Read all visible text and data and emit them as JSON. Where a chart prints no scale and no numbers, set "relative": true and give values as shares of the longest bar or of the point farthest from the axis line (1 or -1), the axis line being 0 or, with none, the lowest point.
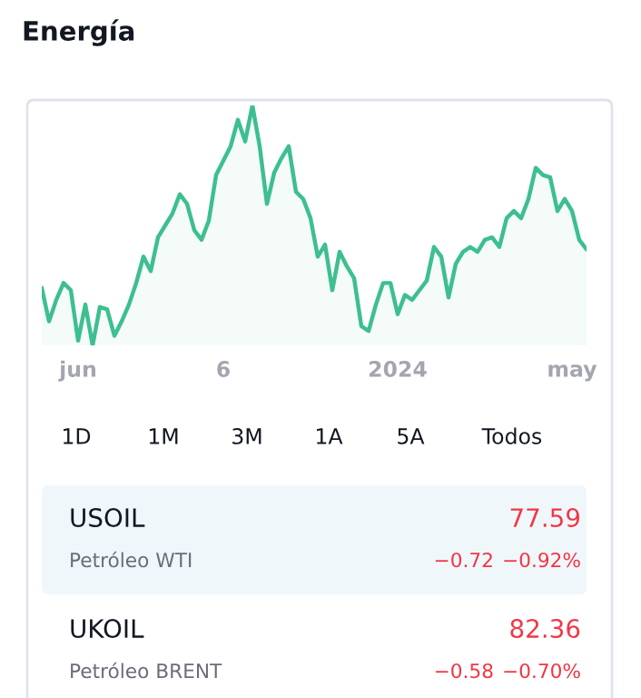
{
  "chart_data": {
    "type": "area",
    "title": "Energía",
    "relative": true,
    "categories": [
      null,
      null,
      null,
      null,
      null,
      "jun",
      null,
      null,
      null,
      null,
      null,
      null,
      null,
      null,
      null,
      null,
      null,
      null,
      null,
      null,
      null,
      null,
      null,
      null,
      null,
      "6",
      null,
      null,
      null,
      null,
      null,
      null,
      null,
      null,
      null,
      null,
      null,
      null,
      null,
      null,
      null,
      null,
      null,
      null,
      null,
      null,
      null,
      null,
      null,
      "2024",
      null,
      null,
      null,
      null,
      null,
      null,
      null,
      null,
      null,
      null,
      null,
      null,
      null,
      null,
      null,
      null,
      null,
      null,
      null,
      null,
      null,
      null,
      null,
      "may",
      null,
      null
    ],
    "series": [
      {
        "color": "#3dbf8f",
        "values": [
          0.24,
          0.1,
          0.19,
          0.26,
          0.23,
          0.02,
          0.17,
          0.0,
          0.16,
          0.15,
          0.04,
          0.1,
          0.17,
          0.26,
          0.37,
          0.31,
          0.45,
          0.5,
          0.55,
          0.63,
          0.59,
          0.48,
          0.44,
          0.52,
          0.71,
          0.77,
          0.83,
          0.94,
          0.85,
          1.0,
          0.83,
          0.59,
          0.72,
          0.78,
          0.83,
          0.64,
          0.61,
          0.53,
          0.37,
          0.42,
          0.23,
          0.39,
          0.33,
          0.28,
          0.08,
          0.06,
          0.17,
          0.26,
          0.26,
          0.13,
          0.21,
          0.19,
          0.23,
          0.27,
          0.41,
          0.37,
          0.2,
          0.34,
          0.39,
          0.41,
          0.39,
          0.44,
          0.45,
          0.41,
          0.53,
          0.56,
          0.53,
          0.61,
          0.74,
          0.71,
          0.7,
          0.56,
          0.61,
          0.56,
          0.44,
          0.4
        ]
      }
    ],
    "annotations": [
      "1D",
      "1M",
      "3M",
      "1A",
      "5A",
      "Todos",
      "USOIL",
      "77.59",
      "Petróleo WTI",
      "−0.72",
      "−0.92%",
      "UKOIL",
      "82.36",
      "Petróleo BRENT",
      "−0.58",
      "−0.70%"
    ]
  }
}
